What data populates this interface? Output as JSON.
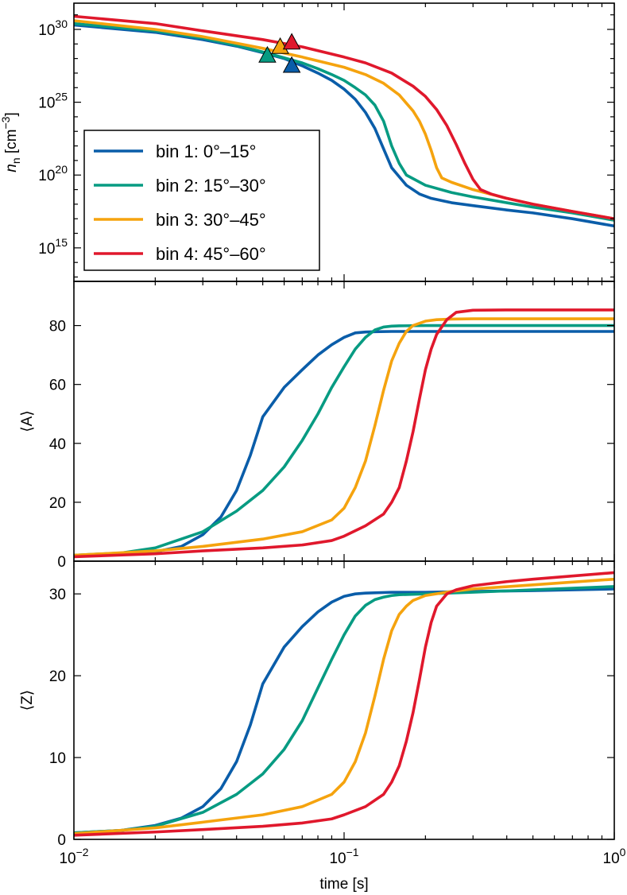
{
  "chart_data": {
    "type": "line",
    "xlabel": "time [s]",
    "x_scale": "log",
    "xlim": [
      0.01,
      1
    ],
    "x_ticks": [
      {
        "value": 0.01,
        "base": "10",
        "exp": "−2"
      },
      {
        "value": 0.1,
        "base": "10",
        "exp": "−1"
      },
      {
        "value": 1,
        "base": "10",
        "exp": "0"
      }
    ],
    "legend": {
      "placement": "lower-left of top panel",
      "entries": [
        "bin 1:   0°–15°",
        "bin 2: 15°–30°",
        "bin 3: 30°–45°",
        "bin 4: 45°–60°"
      ]
    },
    "colors": [
      "#0a5da9",
      "#079b82",
      "#f5a30e",
      "#e0182c"
    ],
    "panels": [
      {
        "id": "nn",
        "ylabel_main": "n",
        "ylabel_sub": "n",
        "ylabel_unit": " [cm",
        "ylabel_exp": "−3",
        "ylabel_close": "]",
        "y_scale": "log",
        "ylim_exp": [
          12.7,
          31.8
        ],
        "y_ticks": [
          {
            "exp_value": 15,
            "base": "10",
            "exp": "15"
          },
          {
            "exp_value": 20,
            "base": "10",
            "exp": "20"
          },
          {
            "exp_value": 25,
            "base": "10",
            "exp": "25"
          },
          {
            "exp_value": 30,
            "base": "10",
            "exp": "30"
          }
        ],
        "markers": [
          {
            "series": 0,
            "t": 0.064,
            "log_y": 27.5
          },
          {
            "series": 1,
            "t": 0.052,
            "log_y": 28.2
          },
          {
            "series": 2,
            "t": 0.058,
            "log_y": 28.8
          },
          {
            "series": 3,
            "t": 0.064,
            "log_y": 29.1
          }
        ],
        "series": [
          {
            "x": [
              0.01,
              0.02,
              0.03,
              0.04,
              0.05,
              0.06,
              0.07,
              0.08,
              0.09,
              0.1,
              0.11,
              0.12,
              0.13,
              0.14,
              0.15,
              0.17,
              0.19,
              0.21,
              0.25,
              0.3,
              0.4,
              0.5,
              0.7,
              1.0
            ],
            "y": [
              30.3,
              29.8,
              29.3,
              28.85,
              28.4,
              28.0,
              27.5,
              27.0,
              26.5,
              25.9,
              25.2,
              24.3,
              23.2,
              21.8,
              20.5,
              19.3,
              18.7,
              18.4,
              18.1,
              17.9,
              17.6,
              17.4,
              17.0,
              16.5
            ]
          },
          {
            "x": [
              0.01,
              0.02,
              0.03,
              0.04,
              0.05,
              0.06,
              0.07,
              0.08,
              0.09,
              0.1,
              0.11,
              0.12,
              0.13,
              0.14,
              0.15,
              0.16,
              0.17,
              0.2,
              0.25,
              0.3,
              0.4,
              0.5,
              0.7,
              1.0
            ],
            "y": [
              30.4,
              29.9,
              29.4,
              28.9,
              28.45,
              28.05,
              27.7,
              27.3,
              26.9,
              26.5,
              26.0,
              25.5,
              24.8,
              23.7,
              22.0,
              20.8,
              20.0,
              19.3,
              18.8,
              18.5,
              18.1,
              17.8,
              17.4,
              16.9
            ]
          },
          {
            "x": [
              0.01,
              0.02,
              0.03,
              0.05,
              0.07,
              0.1,
              0.12,
              0.14,
              0.16,
              0.18,
              0.19,
              0.2,
              0.21,
              0.22,
              0.23,
              0.25,
              0.3,
              0.4,
              0.5,
              0.7,
              1.0
            ],
            "y": [
              30.6,
              30.0,
              29.5,
              28.7,
              28.1,
              27.4,
              26.9,
              26.3,
              25.5,
              24.4,
              23.7,
              22.8,
              21.7,
              20.5,
              19.8,
              19.5,
              19.0,
              18.4,
              18.0,
              17.5,
              17.0
            ]
          },
          {
            "x": [
              0.01,
              0.02,
              0.03,
              0.05,
              0.07,
              0.1,
              0.12,
              0.15,
              0.18,
              0.2,
              0.22,
              0.24,
              0.26,
              0.28,
              0.3,
              0.32,
              0.35,
              0.4,
              0.5,
              0.7,
              1.0
            ],
            "y": [
              30.9,
              30.4,
              29.9,
              29.3,
              28.8,
              28.1,
              27.7,
              27.0,
              26.1,
              25.4,
              24.5,
              23.4,
              22.1,
              20.8,
              19.7,
              19.0,
              18.7,
              18.4,
              18.0,
              17.5,
              17.0
            ]
          }
        ]
      },
      {
        "id": "A",
        "ylabel_main": "⟨A⟩",
        "y_scale": "linear",
        "ylim": [
          0,
          95
        ],
        "y_ticks": [
          0,
          20,
          40,
          60,
          80
        ],
        "series": [
          {
            "x": [
              0.01,
              0.015,
              0.02,
              0.025,
              0.03,
              0.035,
              0.04,
              0.045,
              0.05,
              0.06,
              0.07,
              0.08,
              0.09,
              0.1,
              0.11,
              0.12,
              0.13,
              0.15,
              0.2,
              0.3,
              0.5,
              1.0
            ],
            "y": [
              2,
              2.3,
              3.2,
              5,
              9,
              15,
              24,
              36,
              49,
              59,
              65,
              70,
              73.5,
              76,
              77.5,
              77.8,
              77.9,
              78,
              78,
              78,
              78,
              78
            ]
          },
          {
            "x": [
              0.01,
              0.015,
              0.02,
              0.03,
              0.04,
              0.05,
              0.06,
              0.07,
              0.08,
              0.09,
              0.1,
              0.11,
              0.12,
              0.13,
              0.14,
              0.15,
              0.16,
              0.2,
              0.3,
              0.5,
              1.0
            ],
            "y": [
              2,
              2.8,
              4.5,
              10,
              17,
              24,
              32,
              41,
              50,
              59,
              66,
              72,
              76,
              78.5,
              79.5,
              79.8,
              79.9,
              80,
              80,
              80,
              80
            ]
          },
          {
            "x": [
              0.01,
              0.02,
              0.03,
              0.05,
              0.07,
              0.09,
              0.1,
              0.11,
              0.12,
              0.13,
              0.14,
              0.15,
              0.16,
              0.17,
              0.18,
              0.2,
              0.22,
              0.25,
              0.3,
              0.5,
              1.0
            ],
            "y": [
              2,
              3.5,
              5,
              7.5,
              10,
              14,
              18,
              25,
              34,
              46,
              58,
              68,
              74,
              78,
              80,
              81.5,
              82,
              82.2,
              82.3,
              82.3,
              82.3
            ]
          },
          {
            "x": [
              0.01,
              0.02,
              0.03,
              0.05,
              0.07,
              0.09,
              0.1,
              0.12,
              0.14,
              0.15,
              0.16,
              0.17,
              0.18,
              0.19,
              0.2,
              0.21,
              0.22,
              0.24,
              0.26,
              0.3,
              0.4,
              0.5,
              1.0
            ],
            "y": [
              1.5,
              2.5,
              3.5,
              4.5,
              5.5,
              7,
              8.5,
              12,
              16,
              20,
              25,
              34,
              44,
              55,
              65,
              72,
              77,
              82,
              84.5,
              85.2,
              85.3,
              85.3,
              85.3
            ]
          }
        ]
      },
      {
        "id": "Z",
        "ylabel_main": "⟨Z⟩",
        "y_scale": "linear",
        "ylim": [
          0,
          34
        ],
        "y_ticks": [
          0,
          10,
          20,
          30
        ],
        "series": [
          {
            "x": [
              0.01,
              0.015,
              0.02,
              0.025,
              0.03,
              0.035,
              0.04,
              0.045,
              0.05,
              0.06,
              0.07,
              0.08,
              0.09,
              0.1,
              0.11,
              0.12,
              0.15,
              0.2,
              0.3,
              0.5,
              1.0
            ],
            "y": [
              0.8,
              1.1,
              1.7,
              2.6,
              4,
              6.2,
              9.5,
              14,
              19,
              23.5,
              26,
              27.8,
              29,
              29.7,
              30,
              30.1,
              30.2,
              30.2,
              30.3,
              30.4,
              30.6
            ]
          },
          {
            "x": [
              0.01,
              0.015,
              0.02,
              0.03,
              0.04,
              0.05,
              0.06,
              0.07,
              0.08,
              0.09,
              0.1,
              0.11,
              0.12,
              0.13,
              0.14,
              0.15,
              0.16,
              0.2,
              0.3,
              0.5,
              1.0
            ],
            "y": [
              0.8,
              1.1,
              1.6,
              3.3,
              5.5,
              8,
              11,
              14.5,
              18.5,
              22,
              25,
              27.3,
              28.6,
              29.3,
              29.6,
              29.8,
              29.9,
              30,
              30.2,
              30.5,
              30.9
            ]
          },
          {
            "x": [
              0.01,
              0.02,
              0.03,
              0.05,
              0.07,
              0.09,
              0.1,
              0.11,
              0.12,
              0.13,
              0.14,
              0.15,
              0.16,
              0.17,
              0.18,
              0.2,
              0.25,
              0.3,
              0.5,
              1.0
            ],
            "y": [
              0.7,
              1.4,
              2.1,
              3,
              4,
              5.5,
              7,
              9.5,
              13,
              17.5,
              22,
              25.5,
              27.5,
              28.5,
              29.2,
              29.8,
              30.3,
              30.6,
              31.1,
              31.8
            ]
          },
          {
            "x": [
              0.01,
              0.02,
              0.03,
              0.05,
              0.07,
              0.09,
              0.1,
              0.12,
              0.14,
              0.15,
              0.16,
              0.17,
              0.18,
              0.19,
              0.2,
              0.21,
              0.22,
              0.24,
              0.26,
              0.3,
              0.4,
              0.5,
              1.0
            ],
            "y": [
              0.5,
              0.9,
              1.2,
              1.6,
              2,
              2.5,
              3,
              4,
              5.5,
              7,
              9,
              12,
              15.5,
              19.5,
              23.5,
              26.5,
              28.5,
              30,
              30.5,
              31,
              31.5,
              31.8,
              32.6
            ]
          }
        ]
      }
    ]
  }
}
